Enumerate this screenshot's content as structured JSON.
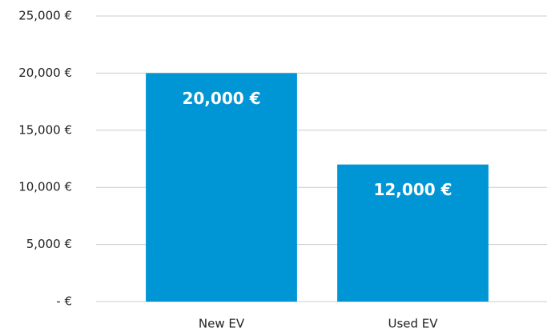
{
  "chart_data": {
    "type": "bar",
    "categories": [
      "New EV",
      "Used EV"
    ],
    "values": [
      20000,
      12000
    ],
    "value_labels": [
      "20,000 €",
      "12,000 €"
    ],
    "color": "#0096d6",
    "ylim": [
      0,
      25000
    ],
    "yticks": [
      {
        "value": 0,
        "label": "- €"
      },
      {
        "value": 5000,
        "label": "5,000 €"
      },
      {
        "value": 10000,
        "label": "10,000 €"
      },
      {
        "value": 15000,
        "label": "15,000 €"
      },
      {
        "value": 20000,
        "label": "20,000 €"
      },
      {
        "value": 25000,
        "label": "25,000 €"
      }
    ],
    "grid": true
  }
}
